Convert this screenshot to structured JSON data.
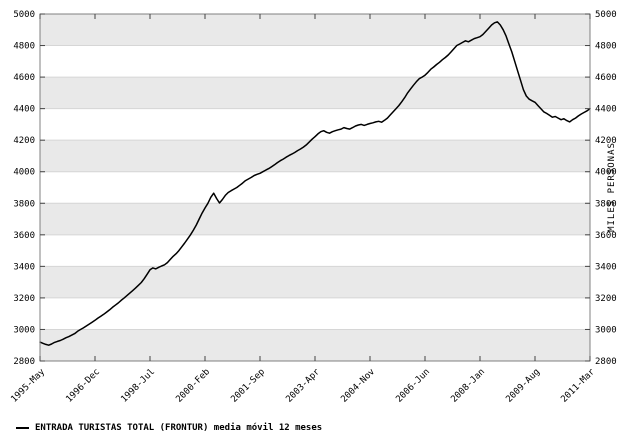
{
  "legend": {
    "marker_icon": "line-sample",
    "label": "ENTRADA TURISTAS TOTAL (FRONTUR) media móvil 12 meses"
  },
  "chart_data": {
    "type": "line",
    "title": "",
    "xlabel": "",
    "ylabel_right": "MILES PERSONAS",
    "ylim": [
      2800,
      5000
    ],
    "yticks": [
      2800,
      3000,
      3200,
      3400,
      3600,
      3800,
      4000,
      4200,
      4400,
      4600,
      4800,
      5000
    ],
    "xtick_labels": [
      "1995-May",
      "1996-Dec",
      "1998-Jul",
      "2000-Feb",
      "2001-Sep",
      "2003-Apr",
      "2004-Nov",
      "2006-Jun",
      "2008-Jan",
      "2009-Aug",
      "2011-Mar"
    ],
    "xtick_positions": [
      0,
      19,
      38,
      57,
      76,
      95,
      114,
      133,
      152,
      171,
      190
    ],
    "grid": "horizontal-bands",
    "band_colors": [
      "#e9e9e9",
      "#ffffff"
    ],
    "line_color": "#000000",
    "border_color": "#808080",
    "legend_position": "bottom-left",
    "series": [
      {
        "name": "ENTRADA TURISTAS TOTAL (FRONTUR) media móvil 12 meses",
        "x_start": "1995-05",
        "x_end": "2011-03",
        "frequency": "monthly",
        "values": [
          2920,
          2912,
          2905,
          2900,
          2908,
          2918,
          2924,
          2930,
          2938,
          2948,
          2955,
          2964,
          2974,
          2988,
          3000,
          3010,
          3022,
          3034,
          3046,
          3058,
          3072,
          3084,
          3096,
          3110,
          3124,
          3140,
          3154,
          3168,
          3184,
          3198,
          3214,
          3230,
          3246,
          3262,
          3280,
          3298,
          3322,
          3350,
          3378,
          3390,
          3384,
          3394,
          3402,
          3410,
          3424,
          3444,
          3464,
          3480,
          3500,
          3524,
          3548,
          3574,
          3600,
          3630,
          3662,
          3700,
          3738,
          3770,
          3800,
          3838,
          3864,
          3830,
          3802,
          3824,
          3850,
          3868,
          3880,
          3890,
          3900,
          3914,
          3928,
          3944,
          3954,
          3964,
          3976,
          3984,
          3990,
          4000,
          4010,
          4020,
          4032,
          4044,
          4058,
          4070,
          4080,
          4092,
          4102,
          4112,
          4122,
          4134,
          4144,
          4156,
          4170,
          4188,
          4206,
          4222,
          4240,
          4254,
          4260,
          4250,
          4244,
          4254,
          4260,
          4266,
          4270,
          4280,
          4274,
          4270,
          4280,
          4290,
          4296,
          4300,
          4294,
          4300,
          4306,
          4310,
          4316,
          4320,
          4314,
          4326,
          4340,
          4360,
          4380,
          4400,
          4420,
          4444,
          4470,
          4500,
          4524,
          4548,
          4570,
          4590,
          4600,
          4612,
          4630,
          4650,
          4664,
          4680,
          4694,
          4710,
          4724,
          4740,
          4760,
          4780,
          4800,
          4810,
          4820,
          4830,
          4824,
          4834,
          4844,
          4850,
          4856,
          4870,
          4890,
          4910,
          4930,
          4944,
          4950,
          4930,
          4900,
          4860,
          4810,
          4760,
          4700,
          4640,
          4580,
          4520,
          4480,
          4460,
          4450,
          4440,
          4420,
          4400,
          4380,
          4370,
          4358,
          4346,
          4350,
          4340,
          4330,
          4336,
          4324,
          4316,
          4330,
          4340,
          4354,
          4366,
          4376,
          4386,
          4400
        ]
      }
    ]
  }
}
